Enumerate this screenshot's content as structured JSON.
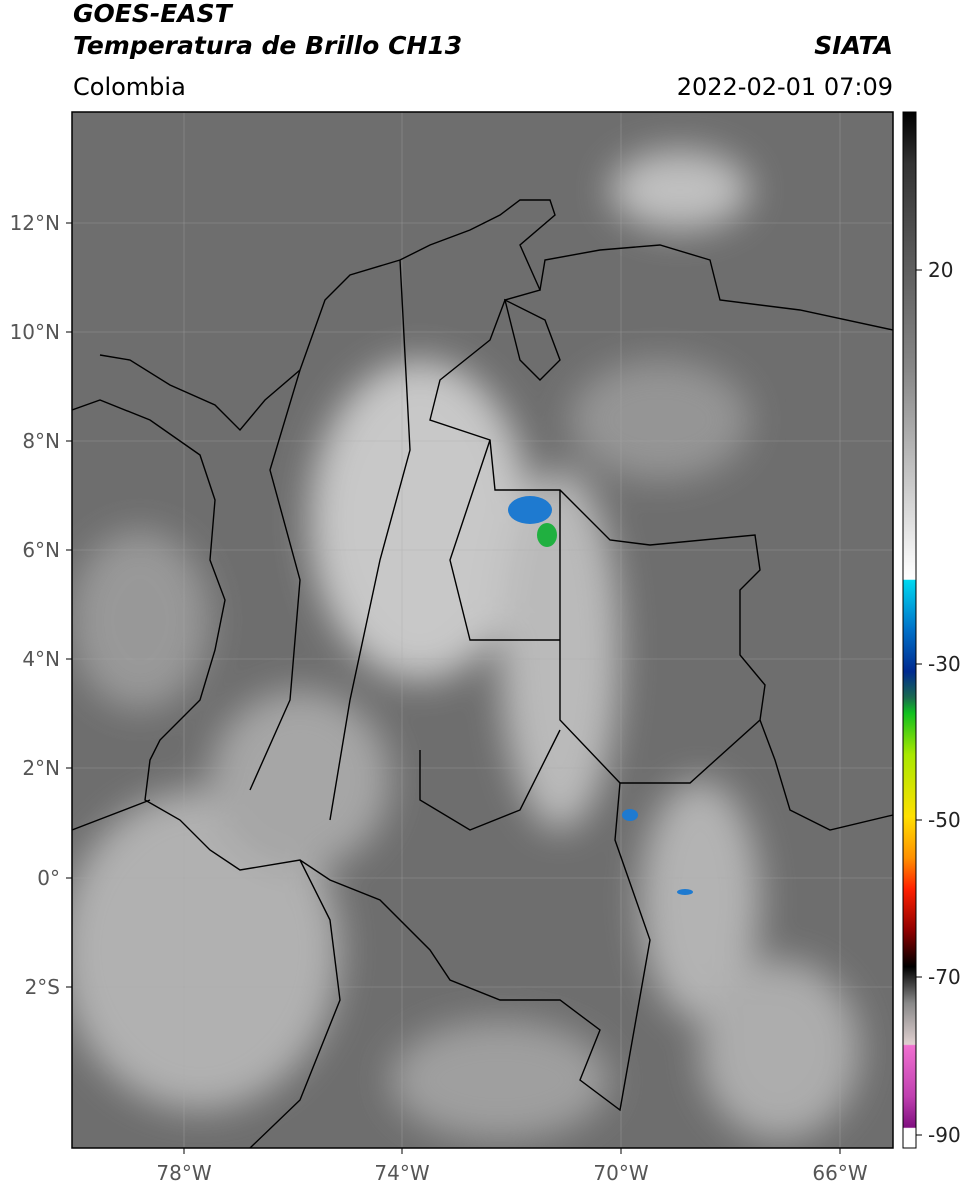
{
  "header": {
    "title": "GOES-EAST",
    "subtitle": "Temperatura de Brillo CH13",
    "region": "Colombia",
    "source": "SIATA",
    "datetime": "2022-02-01 07:09"
  },
  "map": {
    "lon_ticks": [
      "78°W",
      "74°W",
      "70°W",
      "66°W"
    ],
    "lat_ticks": [
      "12°N",
      "10°N",
      "8°N",
      "6°N",
      "4°N",
      "2°N",
      "0°",
      "2°S"
    ]
  },
  "colorbar": {
    "ticks": [
      "20",
      "-30",
      "-50",
      "-70",
      "-90"
    ]
  }
}
